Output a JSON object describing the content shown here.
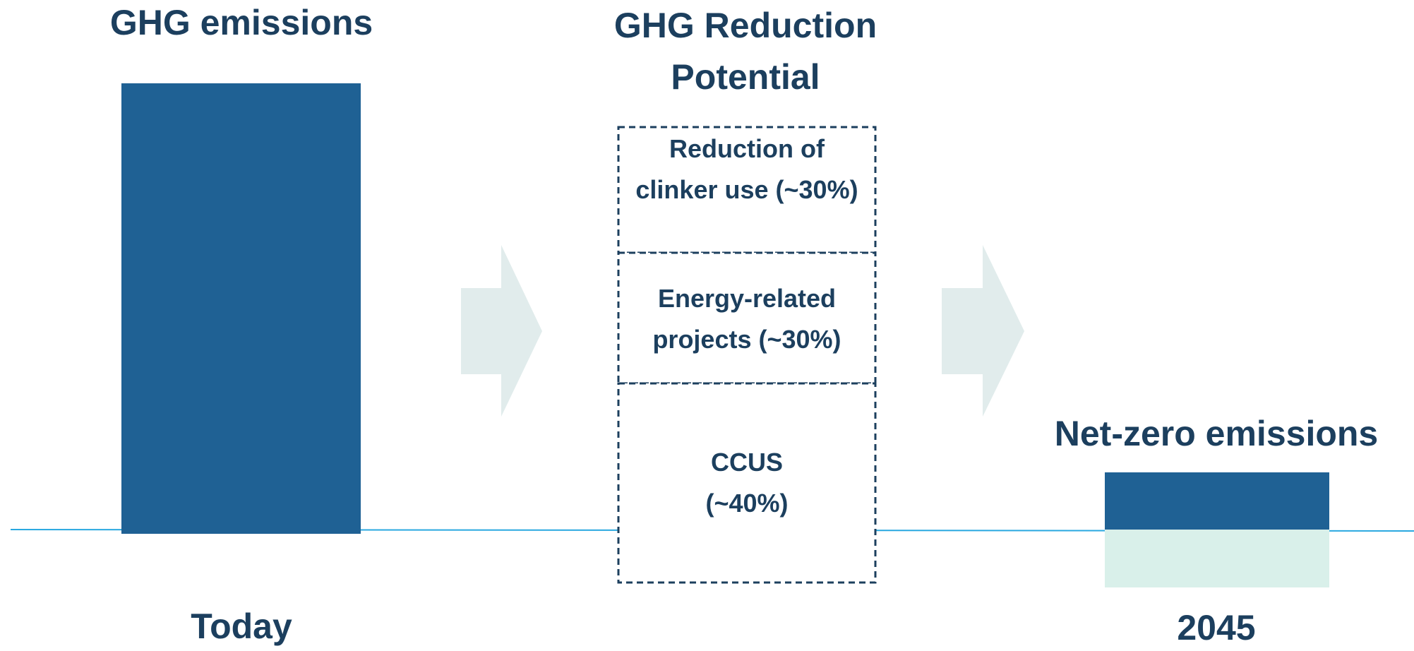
{
  "left": {
    "title": "GHG emissions",
    "label": "Today"
  },
  "middle": {
    "title": "GHG Reduction Potential",
    "boxes": [
      "Reduction of clinker use (~30%)",
      "Energy-related projects (~30%)",
      "CCUS (~40%)"
    ]
  },
  "right": {
    "title": "Net-zero emissions",
    "label": "2045"
  }
}
